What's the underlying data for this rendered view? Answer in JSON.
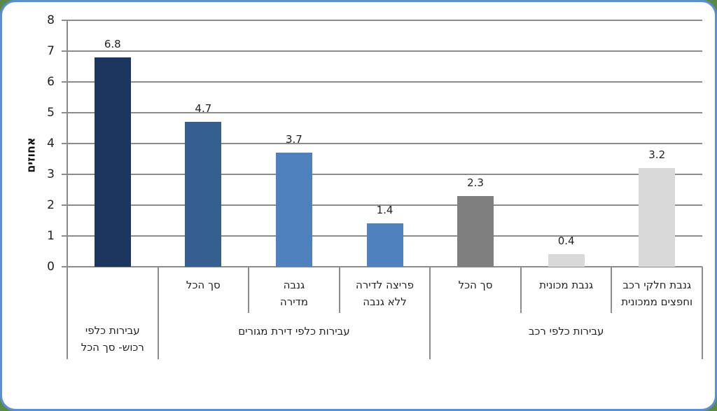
{
  "chart_data": {
    "type": "bar",
    "title": "",
    "xlabel": "",
    "ylabel": "אחוזים",
    "ylim": [
      0,
      8
    ],
    "yticks": [
      0,
      1,
      2,
      3,
      4,
      5,
      6,
      7,
      8
    ],
    "grid": true,
    "legend": null,
    "categories": [
      "עבירות כלפי רכוש- סך הכל",
      "סך הכל",
      "גנבה מדירה",
      "פריצה לדירה ללא גנבה",
      "סך הכל",
      "גנבת מכונית",
      "גנבת חלקי רכב וחפצים ממכונית"
    ],
    "groups": [
      {
        "label": "עבירות כלפי רכוש- סך הכל",
        "members": [
          0
        ]
      },
      {
        "label": "עבירות כלפי דירת מגורים",
        "members": [
          1,
          2,
          3
        ]
      },
      {
        "label": "עבירות כלפי רכב",
        "members": [
          4,
          5,
          6
        ]
      }
    ],
    "values": [
      6.8,
      4.7,
      3.7,
      1.4,
      2.3,
      0.4,
      3.2
    ],
    "labels": [
      "6.8",
      "4.7",
      "3.7",
      "1.4",
      "2.3",
      "0.4",
      "3.2"
    ],
    "colors": [
      "#1b365e",
      "#355f91",
      "#4f81bd",
      "#4f81bd",
      "#7f7f7f",
      "#d9d9d9",
      "#d9d9d9"
    ]
  },
  "axis": {
    "y_title": "אחוזים",
    "ticks": [
      "0",
      "1",
      "2",
      "3",
      "4",
      "5",
      "6",
      "7",
      "8"
    ]
  },
  "subcats": [
    {
      "line1": "",
      "line2": ""
    },
    {
      "line1": "סך הכל",
      "line2": ""
    },
    {
      "line1": "גנבה",
      "line2": "מדירה"
    },
    {
      "line1": "פריצה לדירה",
      "line2": "ללא גנבה"
    },
    {
      "line1": "סך הכל",
      "line2": ""
    },
    {
      "line1": "גנבת מכונית",
      "line2": ""
    },
    {
      "line1": "גנבת חלקי רכב",
      "line2": "וחפצים ממכונית"
    }
  ],
  "groups": [
    {
      "line1": "עבירות כלפי",
      "line2": "רכוש- סך הכל"
    },
    {
      "line1": "עבירות כלפי דירת מגורים",
      "line2": ""
    },
    {
      "line1": "עבירות כלפי רכב",
      "line2": ""
    }
  ]
}
